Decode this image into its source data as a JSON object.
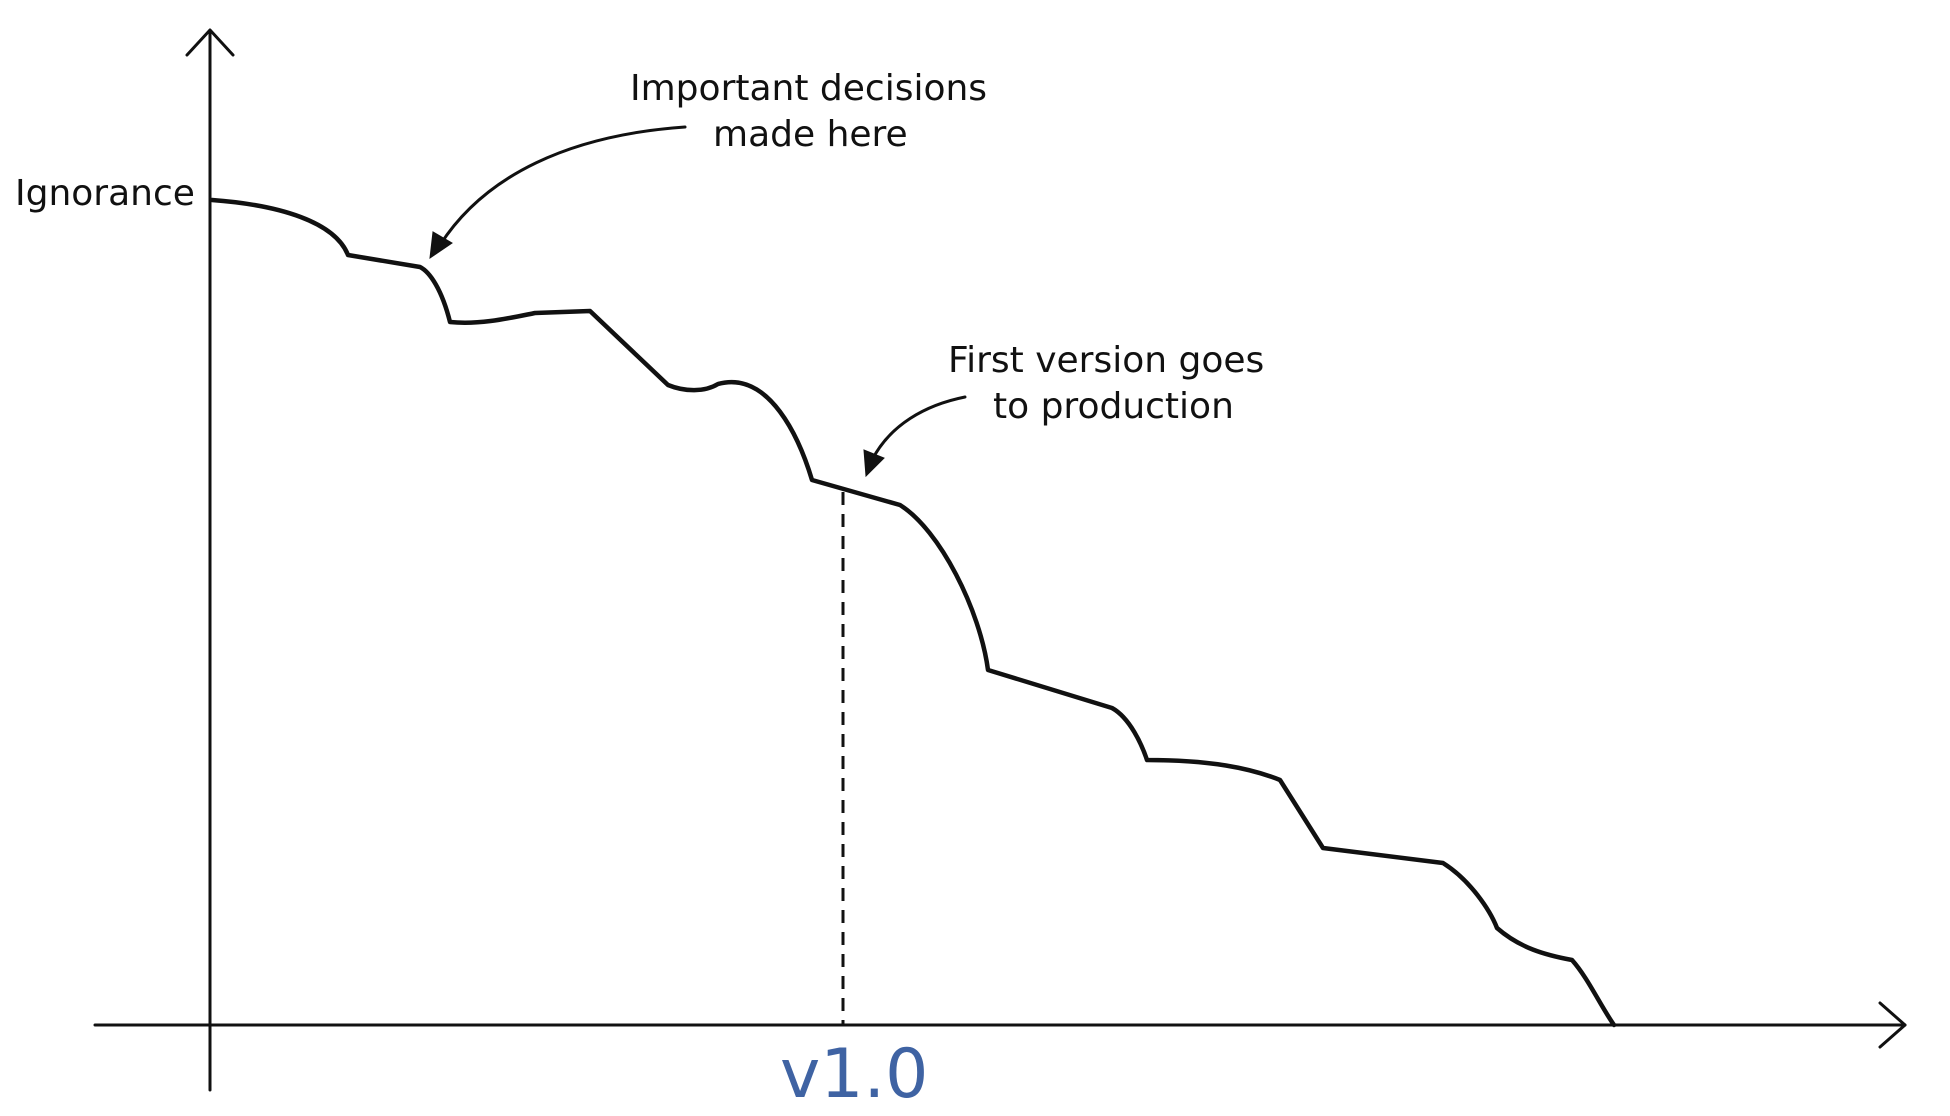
{
  "diagram": {
    "y_axis_label": "Ignorance",
    "x_marker_label": "v1.0",
    "annotation_decisions": {
      "line1": "Important decisions",
      "line2": "made here"
    },
    "annotation_release": {
      "line1": "First version goes",
      "line2": "to production"
    },
    "colors": {
      "ink": "#111111",
      "version_label": "#3f63a3",
      "background": "#ffffff"
    }
  }
}
